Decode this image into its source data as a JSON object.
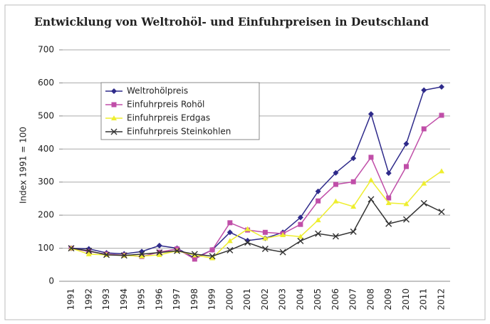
{
  "chart_data": {
    "type": "line",
    "title": "Entwicklung von Weltrohöl- und Einfuhrpreisen in Deutschland",
    "y_label": "Index 1991 = 100",
    "categories": [
      "1991",
      "1992",
      "1993",
      "1994",
      "1995",
      "1996",
      "1997",
      "1998",
      "1999",
      "2000",
      "2001",
      "2002",
      "2003",
      "2004",
      "2005",
      "2006",
      "2007",
      "2008",
      "2009",
      "2010",
      "2011",
      "2012"
    ],
    "series": [
      {
        "name": "Weltrohölpreis",
        "color": "#2e2a8a",
        "marker": "diamond",
        "values": [
          100,
          98,
          86,
          83,
          90,
          108,
          100,
          70,
          95,
          148,
          123,
          130,
          148,
          193,
          272,
          328,
          372,
          506,
          327,
          416,
          578,
          588
        ]
      },
      {
        "name": "Einfuhrpreis Rohöl",
        "color": "#c04ea8",
        "marker": "square",
        "values": [
          100,
          90,
          82,
          79,
          75,
          88,
          98,
          67,
          95,
          177,
          155,
          148,
          144,
          172,
          243,
          293,
          301,
          375,
          252,
          347,
          461,
          502
        ]
      },
      {
        "name": "Einfuhrpreis Erdgas",
        "color": "#eeee30",
        "marker": "triangle",
        "values": [
          100,
          82,
          80,
          78,
          76,
          80,
          92,
          79,
          70,
          122,
          158,
          130,
          140,
          135,
          185,
          242,
          226,
          306,
          237,
          234,
          296,
          333
        ]
      },
      {
        "name": "Einfuhrpreis Steinkohlen",
        "color": "#333333",
        "marker": "x",
        "values": [
          100,
          92,
          80,
          78,
          82,
          87,
          92,
          82,
          76,
          94,
          117,
          98,
          88,
          122,
          144,
          136,
          150,
          248,
          174,
          187,
          236,
          210
        ]
      }
    ],
    "ylim": [
      0,
      700
    ],
    "yticks": [
      0,
      100,
      200,
      300,
      400,
      500,
      600,
      700
    ],
    "grid": true,
    "legend": "upper left"
  }
}
